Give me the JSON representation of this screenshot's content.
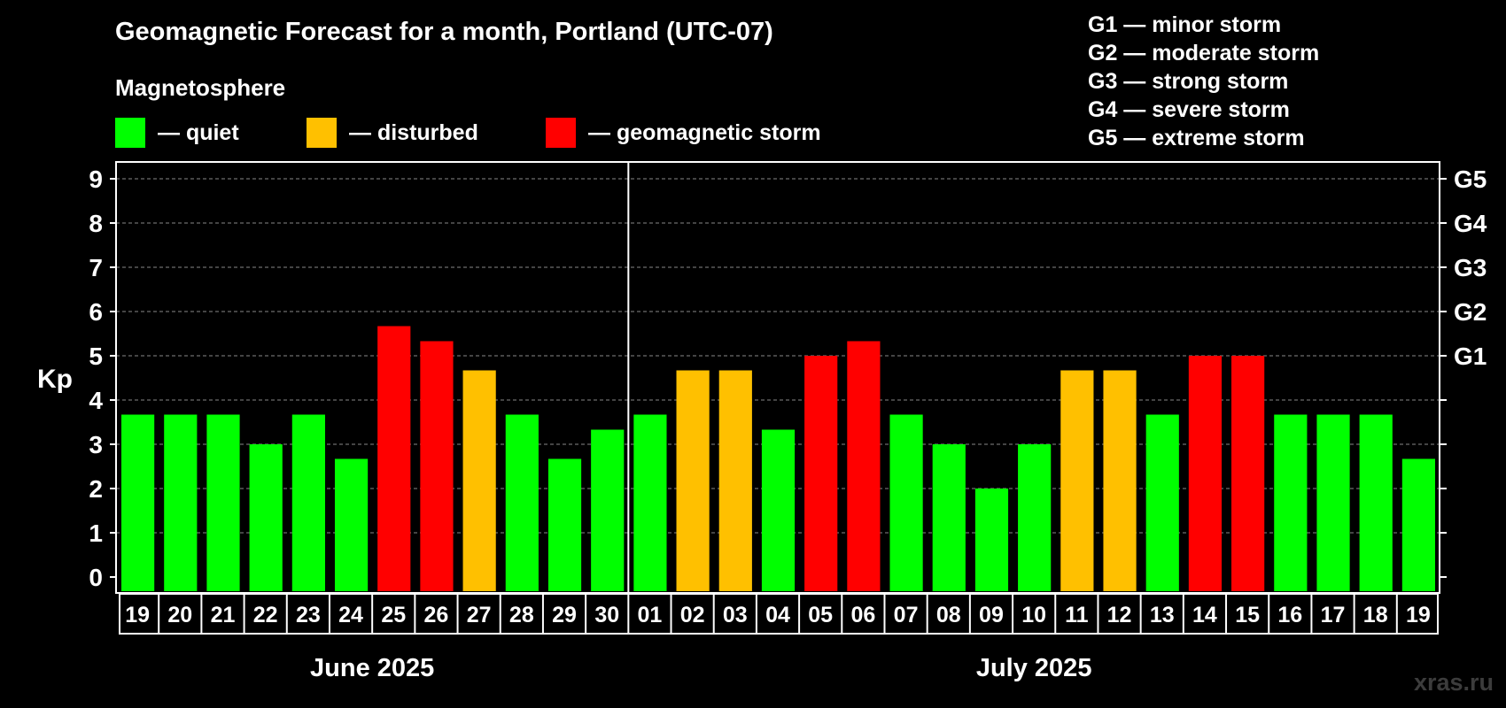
{
  "title": "Geomagnetic Forecast for a month, Portland (UTC-07)",
  "subtitle": "Magnetosphere",
  "legend": [
    {
      "label": "— quiet",
      "color": "#00ff00"
    },
    {
      "label": "— disturbed",
      "color": "#ffc000"
    },
    {
      "label": "— geomagnetic storm",
      "color": "#ff0000"
    }
  ],
  "g_levels": [
    "G1 — minor storm",
    "G2 — moderate storm",
    "G3 — strong storm",
    "G4 — severe storm",
    "G5 — extreme storm"
  ],
  "watermark": "xras.ru",
  "chart_data": {
    "type": "bar",
    "ylabel": "Kp",
    "ylim": [
      0,
      9
    ],
    "yticks": [
      "0",
      "1",
      "2",
      "3",
      "4",
      "5",
      "6",
      "7",
      "8",
      "9"
    ],
    "right_ticks": [
      {
        "value": 5,
        "label": "G1"
      },
      {
        "value": 6,
        "label": "G2"
      },
      {
        "value": 7,
        "label": "G3"
      },
      {
        "value": 8,
        "label": "G4"
      },
      {
        "value": 9,
        "label": "G5"
      }
    ],
    "grid": "dashed horizontal",
    "months": [
      {
        "label": "June 2025",
        "days": 12
      },
      {
        "label": "July 2025",
        "days": 19
      }
    ],
    "categories": [
      "19",
      "20",
      "21",
      "22",
      "23",
      "24",
      "25",
      "26",
      "27",
      "28",
      "29",
      "30",
      "01",
      "02",
      "03",
      "04",
      "05",
      "06",
      "07",
      "08",
      "09",
      "10",
      "11",
      "12",
      "13",
      "14",
      "15",
      "16",
      "17",
      "18",
      "19"
    ],
    "values": [
      3.67,
      3.67,
      3.67,
      3.0,
      3.67,
      2.67,
      5.67,
      5.33,
      4.67,
      3.67,
      2.67,
      3.33,
      3.67,
      4.67,
      4.67,
      3.33,
      5.0,
      5.33,
      3.67,
      3.0,
      2.0,
      3.0,
      4.67,
      4.67,
      3.67,
      5.0,
      5.0,
      3.67,
      3.67,
      3.67,
      2.67
    ],
    "status": [
      "quiet",
      "quiet",
      "quiet",
      "quiet",
      "quiet",
      "quiet",
      "storm",
      "storm",
      "disturbed",
      "quiet",
      "quiet",
      "quiet",
      "quiet",
      "disturbed",
      "disturbed",
      "quiet",
      "storm",
      "storm",
      "quiet",
      "quiet",
      "quiet",
      "quiet",
      "disturbed",
      "disturbed",
      "quiet",
      "storm",
      "storm",
      "quiet",
      "quiet",
      "quiet",
      "quiet"
    ],
    "colors": {
      "quiet": "#00ff00",
      "disturbed": "#ffc000",
      "storm": "#ff0000"
    }
  }
}
